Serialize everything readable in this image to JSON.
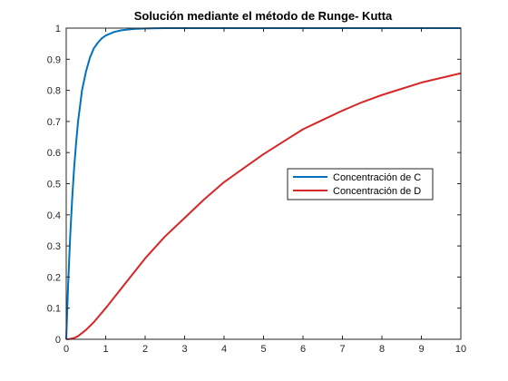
{
  "chart_data": {
    "type": "line",
    "title": "Solución mediante el método de Runge- Kutta",
    "xlabel": "",
    "ylabel": "",
    "xlim": [
      0,
      10
    ],
    "ylim": [
      0,
      1
    ],
    "x_ticks": [
      0,
      1,
      2,
      3,
      4,
      5,
      6,
      7,
      8,
      9,
      10
    ],
    "y_ticks": [
      0,
      0.1,
      0.2,
      0.3,
      0.4,
      0.5,
      0.6,
      0.7,
      0.8,
      0.9,
      1
    ],
    "x_tick_labels": [
      "0",
      "1",
      "2",
      "3",
      "4",
      "5",
      "6",
      "7",
      "8",
      "9",
      "10"
    ],
    "y_tick_labels": [
      "0",
      "0.1",
      "0.2",
      "0.3",
      "0.4",
      "0.5",
      "0.6",
      "0.7",
      "0.8",
      "0.9",
      "1"
    ],
    "grid": false,
    "legend_position": "right-center",
    "series": [
      {
        "name": "Concentración de C",
        "color": "#0072BD",
        "x": [
          0,
          0.05,
          0.1,
          0.15,
          0.2,
          0.25,
          0.3,
          0.4,
          0.5,
          0.6,
          0.7,
          0.8,
          0.9,
          1.0,
          1.2,
          1.4,
          1.6,
          1.8,
          2.0,
          2.5,
          3.0,
          3.5,
          4.0,
          5.0,
          6.0,
          7.0,
          8.0,
          9.0,
          10.0
        ],
        "values": [
          0,
          0.18,
          0.33,
          0.45,
          0.55,
          0.63,
          0.7,
          0.8,
          0.86,
          0.905,
          0.935,
          0.953,
          0.967,
          0.976,
          0.987,
          0.993,
          0.996,
          0.998,
          0.999,
          1.0,
          1.0,
          1.0,
          1.0,
          1.0,
          1.0,
          1.0,
          1.0,
          1.0,
          1.0
        ]
      },
      {
        "name": "Concentración de D",
        "color": "#D62728",
        "x": [
          0,
          0.1,
          0.2,
          0.3,
          0.5,
          0.7,
          1.0,
          1.5,
          2.0,
          2.5,
          3.0,
          3.5,
          4.0,
          4.5,
          5.0,
          5.5,
          6.0,
          6.5,
          7.0,
          7.5,
          8.0,
          8.5,
          9.0,
          9.5,
          10.0
        ],
        "values": [
          0,
          0.001,
          0.004,
          0.01,
          0.03,
          0.055,
          0.1,
          0.18,
          0.26,
          0.33,
          0.39,
          0.45,
          0.505,
          0.55,
          0.595,
          0.635,
          0.675,
          0.705,
          0.735,
          0.762,
          0.785,
          0.805,
          0.825,
          0.84,
          0.855
        ]
      }
    ]
  }
}
